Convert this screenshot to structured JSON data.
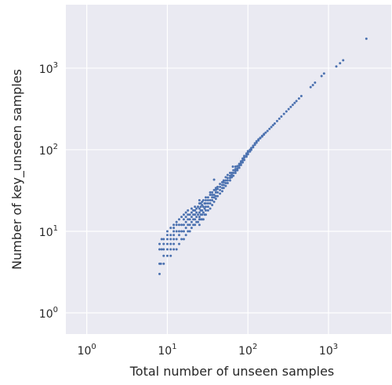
{
  "chart_data": {
    "type": "scatter",
    "title": "",
    "xlabel": "Total number of unseen samples",
    "ylabel": "Number of key_unseen samples",
    "x_scale": "log",
    "y_scale": "log",
    "xlim": [
      0.55,
      6000
    ],
    "ylim": [
      0.55,
      6000
    ],
    "grid": true,
    "background": "#eaeaf2",
    "marker_color": "#4c72b0",
    "x_ticks": [
      {
        "base": "10",
        "exp": "0",
        "value": 1
      },
      {
        "base": "10",
        "exp": "1",
        "value": 10
      },
      {
        "base": "10",
        "exp": "2",
        "value": 100
      },
      {
        "base": "10",
        "exp": "3",
        "value": 1000
      }
    ],
    "y_ticks": [
      {
        "base": "10",
        "exp": "0",
        "value": 1
      },
      {
        "base": "10",
        "exp": "1",
        "value": 10
      },
      {
        "base": "10",
        "exp": "2",
        "value": 100
      },
      {
        "base": "10",
        "exp": "3",
        "value": 1000
      }
    ],
    "points": [
      [
        8,
        3
      ],
      [
        8,
        4
      ],
      [
        8,
        6
      ],
      [
        8,
        7
      ],
      [
        8.3,
        4
      ],
      [
        8.5,
        6
      ],
      [
        8.5,
        8
      ],
      [
        9,
        4
      ],
      [
        9,
        5
      ],
      [
        9,
        6
      ],
      [
        9,
        7
      ],
      [
        9,
        8
      ],
      [
        10,
        5
      ],
      [
        10,
        6
      ],
      [
        10,
        7
      ],
      [
        10,
        8
      ],
      [
        10,
        9
      ],
      [
        10,
        10
      ],
      [
        11,
        5
      ],
      [
        11,
        6
      ],
      [
        11,
        7
      ],
      [
        11,
        8
      ],
      [
        11,
        9
      ],
      [
        11,
        11
      ],
      [
        12,
        6
      ],
      [
        12,
        7
      ],
      [
        12,
        8
      ],
      [
        12,
        9
      ],
      [
        12,
        10
      ],
      [
        12,
        11
      ],
      [
        12,
        12
      ],
      [
        13,
        6
      ],
      [
        13,
        8
      ],
      [
        13,
        10
      ],
      [
        13,
        12
      ],
      [
        13,
        13
      ],
      [
        14,
        7
      ],
      [
        14,
        9
      ],
      [
        14,
        10
      ],
      [
        14,
        12
      ],
      [
        14,
        14
      ],
      [
        15,
        8
      ],
      [
        15,
        10
      ],
      [
        15,
        12
      ],
      [
        15,
        15
      ],
      [
        16,
        8
      ],
      [
        16,
        10
      ],
      [
        16,
        12
      ],
      [
        16,
        14
      ],
      [
        16,
        16
      ],
      [
        17,
        9
      ],
      [
        17,
        11
      ],
      [
        17,
        13
      ],
      [
        17,
        15
      ],
      [
        17,
        17
      ],
      [
        18,
        10
      ],
      [
        18,
        12
      ],
      [
        18,
        14
      ],
      [
        18,
        16
      ],
      [
        18,
        18
      ],
      [
        19,
        10
      ],
      [
        19,
        12
      ],
      [
        19,
        14
      ],
      [
        19,
        16
      ],
      [
        20,
        11
      ],
      [
        20,
        13
      ],
      [
        20,
        15
      ],
      [
        20,
        17
      ],
      [
        20,
        19
      ],
      [
        21,
        12
      ],
      [
        21,
        14
      ],
      [
        21,
        16
      ],
      [
        21,
        18
      ],
      [
        22,
        12
      ],
      [
        22,
        14
      ],
      [
        22,
        16
      ],
      [
        22,
        18
      ],
      [
        22,
        20
      ],
      [
        23,
        13
      ],
      [
        23,
        15
      ],
      [
        23,
        17
      ],
      [
        23,
        19
      ],
      [
        24,
        13
      ],
      [
        24,
        16
      ],
      [
        24,
        20
      ],
      [
        25,
        12
      ],
      [
        25,
        14
      ],
      [
        25,
        15
      ],
      [
        25,
        17
      ],
      [
        25,
        19
      ],
      [
        25,
        22
      ],
      [
        25,
        24
      ],
      [
        26,
        14
      ],
      [
        26,
        16
      ],
      [
        26,
        18
      ],
      [
        26,
        20
      ],
      [
        26,
        22
      ],
      [
        27,
        14
      ],
      [
        27,
        16
      ],
      [
        27,
        18
      ],
      [
        27,
        21
      ],
      [
        27,
        23
      ],
      [
        28,
        14
      ],
      [
        28,
        17
      ],
      [
        28,
        20
      ],
      [
        28,
        24
      ],
      [
        29,
        16
      ],
      [
        29,
        19
      ],
      [
        29,
        22
      ],
      [
        30,
        16
      ],
      [
        30,
        18
      ],
      [
        30,
        20
      ],
      [
        30,
        22
      ],
      [
        30,
        24
      ],
      [
        30,
        26
      ],
      [
        32,
        18
      ],
      [
        32,
        20
      ],
      [
        32,
        22
      ],
      [
        32,
        24
      ],
      [
        32,
        26
      ],
      [
        34,
        19
      ],
      [
        34,
        22
      ],
      [
        34,
        24
      ],
      [
        34,
        28
      ],
      [
        34,
        30
      ],
      [
        36,
        21
      ],
      [
        36,
        24
      ],
      [
        36,
        26
      ],
      [
        36,
        28
      ],
      [
        36,
        30
      ],
      [
        38,
        23
      ],
      [
        38,
        26
      ],
      [
        38,
        28
      ],
      [
        38,
        32
      ],
      [
        38,
        43
      ],
      [
        40,
        25
      ],
      [
        40,
        27
      ],
      [
        40,
        30
      ],
      [
        40,
        32
      ],
      [
        40,
        34
      ],
      [
        42,
        27
      ],
      [
        42,
        30
      ],
      [
        42,
        33
      ],
      [
        42,
        35
      ],
      [
        45,
        29
      ],
      [
        45,
        32
      ],
      [
        45,
        35
      ],
      [
        45,
        38
      ],
      [
        48,
        31
      ],
      [
        48,
        34
      ],
      [
        48,
        37
      ],
      [
        48,
        40
      ],
      [
        50,
        34
      ],
      [
        50,
        37
      ],
      [
        50,
        40
      ],
      [
        50,
        42
      ],
      [
        53,
        36
      ],
      [
        53,
        39
      ],
      [
        53,
        42
      ],
      [
        53,
        46
      ],
      [
        56,
        39
      ],
      [
        56,
        42
      ],
      [
        56,
        45
      ],
      [
        56,
        49
      ],
      [
        60,
        42
      ],
      [
        60,
        45
      ],
      [
        60,
        48
      ],
      [
        60,
        52
      ],
      [
        63,
        46
      ],
      [
        63,
        49
      ],
      [
        63,
        52
      ],
      [
        65,
        62
      ],
      [
        66,
        48
      ],
      [
        66,
        52
      ],
      [
        66,
        56
      ],
      [
        70,
        52
      ],
      [
        70,
        55
      ],
      [
        70,
        58
      ],
      [
        70,
        62
      ],
      [
        74,
        56
      ],
      [
        74,
        59
      ],
      [
        74,
        63
      ],
      [
        78,
        60
      ],
      [
        78,
        64
      ],
      [
        78,
        67
      ],
      [
        82,
        65
      ],
      [
        82,
        69
      ],
      [
        82,
        72
      ],
      [
        86,
        70
      ],
      [
        86,
        74
      ],
      [
        86,
        78
      ],
      [
        90,
        75
      ],
      [
        90,
        80
      ],
      [
        90,
        84
      ],
      [
        96,
        82
      ],
      [
        96,
        86
      ],
      [
        96,
        90
      ],
      [
        100,
        88
      ],
      [
        100,
        92
      ],
      [
        100,
        96
      ],
      [
        106,
        95
      ],
      [
        106,
        100
      ],
      [
        110,
        100
      ],
      [
        110,
        105
      ],
      [
        116,
        107
      ],
      [
        116,
        112
      ],
      [
        122,
        115
      ],
      [
        122,
        120
      ],
      [
        128,
        122
      ],
      [
        128,
        127
      ],
      [
        135,
        130
      ],
      [
        135,
        134
      ],
      [
        142,
        138
      ],
      [
        142,
        140
      ],
      [
        150,
        145
      ],
      [
        150,
        148
      ],
      [
        158,
        153
      ],
      [
        158,
        156
      ],
      [
        166,
        162
      ],
      [
        175,
        170
      ],
      [
        185,
        180
      ],
      [
        195,
        190
      ],
      [
        205,
        200
      ],
      [
        215,
        210
      ],
      [
        230,
        225
      ],
      [
        245,
        240
      ],
      [
        260,
        255
      ],
      [
        280,
        275
      ],
      [
        300,
        295
      ],
      [
        320,
        315
      ],
      [
        340,
        335
      ],
      [
        360,
        355
      ],
      [
        380,
        375
      ],
      [
        400,
        395
      ],
      [
        430,
        425
      ],
      [
        460,
        455
      ],
      [
        600,
        585
      ],
      [
        640,
        620
      ],
      [
        680,
        665
      ],
      [
        820,
        800
      ],
      [
        880,
        860
      ],
      [
        1250,
        1050
      ],
      [
        1390,
        1150
      ],
      [
        1520,
        1250
      ],
      [
        2950,
        2300
      ]
    ]
  }
}
